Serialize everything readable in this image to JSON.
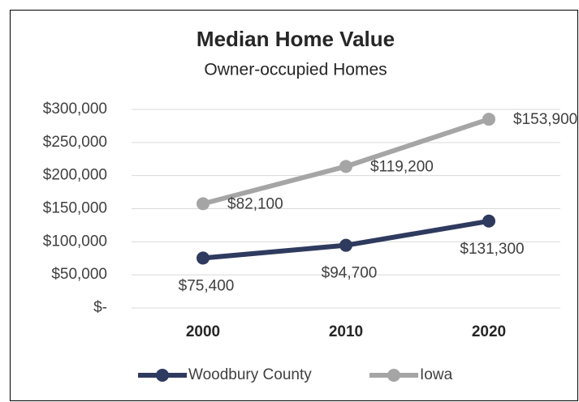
{
  "chart_data": {
    "type": "line",
    "stacked": true,
    "title": "Median Home Value",
    "subtitle": "Owner-occupied Homes",
    "categories": [
      "2000",
      "2010",
      "2020"
    ],
    "series": [
      {
        "name": "Woodbury County",
        "color": "#2e3a5e",
        "values": [
          75400,
          94700,
          131300
        ],
        "value_labels": [
          "$75,400",
          "$94,700",
          "$131,300"
        ]
      },
      {
        "name": "Iowa",
        "color": "#a5a5a5",
        "values": [
          82100,
          119200,
          153900
        ],
        "value_labels": [
          "$82,100",
          "$119,200",
          "$153,900"
        ]
      }
    ],
    "ylim": [
      0,
      300000
    ],
    "yticks": [
      {
        "value": 0,
        "label": "$-"
      },
      {
        "value": 50000,
        "label": "$50,000"
      },
      {
        "value": 100000,
        "label": "$100,000"
      },
      {
        "value": 150000,
        "label": "$150,000"
      },
      {
        "value": 200000,
        "label": "$200,000"
      },
      {
        "value": 250000,
        "label": "$250,000"
      },
      {
        "value": 300000,
        "label": "$300,000"
      }
    ],
    "grid": true,
    "legend": "bottom"
  }
}
